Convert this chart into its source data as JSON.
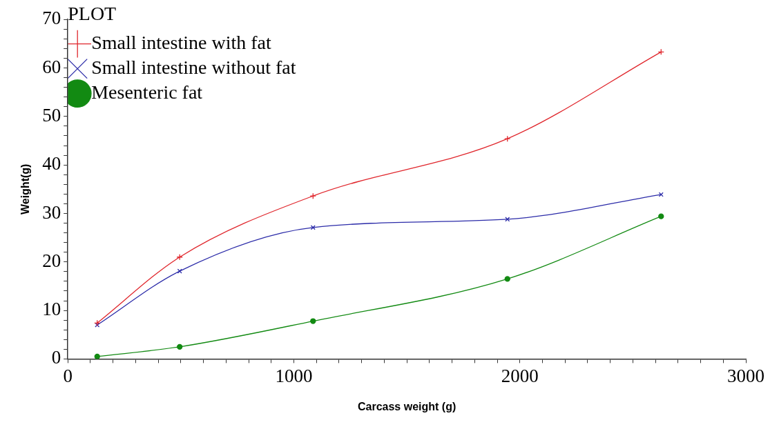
{
  "chart_data": {
    "type": "line",
    "xlabel": "Carcass weight (g)",
    "ylabel": "Weight(g)",
    "legend_title": "PLOT",
    "legend": "top left",
    "grid": false,
    "line_style": "solid",
    "xlim": [
      0,
      3000
    ],
    "ylim": [
      0,
      70
    ],
    "xticks": [
      0,
      {
        "value": 100,
        "label": null
      },
      {
        "value": 200,
        "label": null
      },
      {
        "value": 300,
        "label": null
      },
      {
        "value": 400,
        "label": null
      },
      {
        "value": 500,
        "label": null
      },
      {
        "value": 600,
        "label": null
      },
      {
        "value": 700,
        "label": null
      },
      {
        "value": 800,
        "label": null
      },
      {
        "value": 900,
        "label": null
      },
      1000,
      {
        "value": 1100,
        "label": null
      },
      {
        "value": 1200,
        "label": null
      },
      {
        "value": 1300,
        "label": null
      },
      {
        "value": 1400,
        "label": null
      },
      {
        "value": 1500,
        "label": null
      },
      {
        "value": 1600,
        "label": null
      },
      {
        "value": 1700,
        "label": null
      },
      {
        "value": 1800,
        "label": null
      },
      {
        "value": 1900,
        "label": null
      },
      2000,
      {
        "value": 2100,
        "label": null
      },
      {
        "value": 2200,
        "label": null
      },
      {
        "value": 2300,
        "label": null
      },
      {
        "value": 2400,
        "label": null
      },
      {
        "value": 2500,
        "label": null
      },
      {
        "value": 2600,
        "label": null
      },
      {
        "value": 2700,
        "label": null
      },
      {
        "value": 2800,
        "label": null
      },
      {
        "value": 2900,
        "label": null
      },
      3000
    ],
    "yticks": [
      0,
      {
        "value": 2,
        "label": null
      },
      {
        "value": 4,
        "label": null
      },
      {
        "value": 6,
        "label": null
      },
      {
        "value": 8,
        "label": null
      },
      10,
      {
        "value": 12,
        "label": null
      },
      {
        "value": 14,
        "label": null
      },
      {
        "value": 16,
        "label": null
      },
      {
        "value": 18,
        "label": null
      },
      20,
      {
        "value": 22,
        "label": null
      },
      {
        "value": 24,
        "label": null
      },
      {
        "value": 26,
        "label": null
      },
      {
        "value": 28,
        "label": null
      },
      30,
      {
        "value": 32,
        "label": null
      },
      {
        "value": 34,
        "label": null
      },
      {
        "value": 36,
        "label": null
      },
      {
        "value": 38,
        "label": null
      },
      40,
      {
        "value": 42,
        "label": null
      },
      {
        "value": 44,
        "label": null
      },
      {
        "value": 46,
        "label": null
      },
      {
        "value": 48,
        "label": null
      },
      50,
      {
        "value": 52,
        "label": null
      },
      {
        "value": 54,
        "label": null
      },
      {
        "value": 56,
        "label": null
      },
      {
        "value": 58,
        "label": null
      },
      60,
      {
        "value": 62,
        "label": null
      },
      {
        "value": 64,
        "label": null
      },
      {
        "value": 66,
        "label": null
      },
      {
        "value": 68,
        "label": null
      },
      70
    ],
    "x": [
      130,
      495,
      1085,
      1945,
      2625
    ],
    "series": [
      {
        "name": "Small intestine with fat",
        "color": "#e0262c",
        "marker": "cross",
        "values": [
          7.4,
          21.0,
          33.6,
          45.4,
          63.3
        ]
      },
      {
        "name": "Small intestine without fat",
        "color": "#2a2aa8",
        "marker": "x",
        "values": [
          7.0,
          18.1,
          27.1,
          28.8,
          33.9
        ]
      },
      {
        "name": "Mesenteric fat",
        "color": "#128a12",
        "marker": "circle",
        "values": [
          0.5,
          2.5,
          7.8,
          16.5,
          29.4
        ]
      }
    ]
  }
}
